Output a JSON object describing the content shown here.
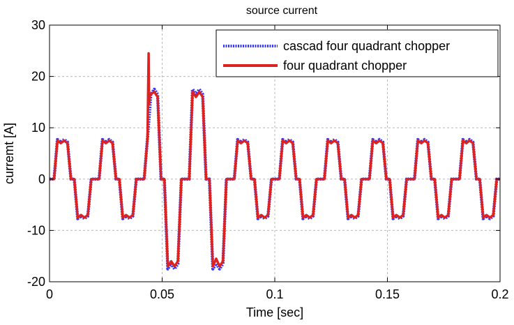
{
  "chart_data": {
    "type": "line",
    "title": "source current",
    "xlabel": "Time  [sec]",
    "ylabel": "curremt [A]",
    "xlim": [
      0,
      0.2
    ],
    "ylim": [
      -20,
      30
    ],
    "xticks": [
      0,
      0.05,
      0.1,
      0.15,
      0.2
    ],
    "xtick_labels": [
      "0",
      "0.05",
      "0.1",
      "0.15",
      "0.2"
    ],
    "yticks": [
      -20,
      -10,
      0,
      10,
      20,
      30
    ],
    "ytick_labels": [
      "-20",
      "-10",
      "0",
      "10",
      "20",
      "30"
    ],
    "grid": true,
    "legend_position": "top-right",
    "fundamental_period": 0.02,
    "series": [
      {
        "name": "cascad four quadrant chopper",
        "color": "#3333ff",
        "style": "dotted",
        "x": [
          0,
          0.002,
          0.0035,
          0.005,
          0.0065,
          0.008,
          0.0095,
          0.011,
          0.0125,
          0.014,
          0.0155,
          0.017,
          0.0185,
          0.02,
          0.022,
          0.0235,
          0.025,
          0.0265,
          0.028,
          0.0295,
          0.031,
          0.0325,
          0.034,
          0.0355,
          0.037,
          0.0385,
          0.04,
          0.042,
          0.0435,
          0.045,
          0.0465,
          0.048,
          0.0495,
          0.051,
          0.0525,
          0.054,
          0.0555,
          0.057,
          0.0585,
          0.06,
          0.062,
          0.0635,
          0.065,
          0.0665,
          0.068,
          0.0695,
          0.071,
          0.0725,
          0.074,
          0.0755,
          0.077,
          0.0785,
          0.08,
          0.082,
          0.0835,
          0.085,
          0.0865,
          0.088,
          0.0895,
          0.091,
          0.0925,
          0.094,
          0.0955,
          0.097,
          0.0985,
          0.1,
          0.102,
          0.1035,
          0.105,
          0.1065,
          0.108,
          0.1095,
          0.111,
          0.1125,
          0.114,
          0.1155,
          0.117,
          0.1185,
          0.12,
          0.122,
          0.1235,
          0.125,
          0.1265,
          0.128,
          0.1295,
          0.131,
          0.1325,
          0.134,
          0.1355,
          0.137,
          0.1385,
          0.14,
          0.142,
          0.1435,
          0.145,
          0.1465,
          0.148,
          0.1495,
          0.151,
          0.1525,
          0.154,
          0.1555,
          0.157,
          0.1585,
          0.16,
          0.162,
          0.1635,
          0.165,
          0.1665,
          0.168,
          0.1695,
          0.171,
          0.1725,
          0.174,
          0.1755,
          0.177,
          0.1785,
          0.18,
          0.182,
          0.1835,
          0.185,
          0.1865,
          0.188,
          0.1895,
          0.191,
          0.1925,
          0.194,
          0.1955,
          0.197,
          0.1985,
          0.2
        ],
        "y": [
          0,
          0,
          7.7,
          7.2,
          7.7,
          7.2,
          0,
          0,
          -7.7,
          -7.2,
          -7.7,
          -7.2,
          0,
          0,
          0,
          7.7,
          7.2,
          7.7,
          7.2,
          0,
          0,
          -7.7,
          -7.2,
          -7.7,
          -7.2,
          0,
          0,
          0,
          8,
          16.5,
          17.5,
          16.5,
          0,
          0,
          -17.5,
          -16.5,
          -17.5,
          -16.5,
          0,
          0,
          0,
          17.5,
          16.5,
          17.5,
          16.5,
          0,
          0,
          -17.5,
          -16.5,
          -17.5,
          -16.5,
          0,
          0,
          0,
          7.7,
          7.2,
          7.7,
          7.2,
          0,
          0,
          -7.7,
          -7.2,
          -7.7,
          -7.2,
          0,
          0,
          0,
          7.7,
          7.2,
          7.7,
          7.2,
          0,
          0,
          -7.7,
          -7.2,
          -7.7,
          -7.2,
          0,
          0,
          0,
          7.7,
          7.2,
          7.7,
          7.2,
          0,
          0,
          -7.7,
          -7.2,
          -7.7,
          -7.2,
          0,
          0,
          0,
          7.7,
          7.2,
          7.7,
          7.2,
          0,
          0,
          -7.7,
          -7.2,
          -7.7,
          -7.2,
          0,
          0,
          0,
          7.7,
          7.2,
          7.7,
          7.2,
          0,
          0,
          -7.7,
          -7.2,
          -7.7,
          -7.2,
          0,
          0,
          0,
          7.7,
          7.2,
          7.7,
          7.2,
          0,
          0,
          -7.7,
          -7.2,
          -7.7,
          -7.2,
          0,
          0
        ]
      },
      {
        "name": "four quadrant chopper",
        "color": "#dd2222",
        "style": "solid",
        "x": [
          0,
          0.002,
          0.0035,
          0.005,
          0.0065,
          0.008,
          0.0095,
          0.011,
          0.0125,
          0.014,
          0.0155,
          0.017,
          0.0185,
          0.02,
          0.022,
          0.0235,
          0.025,
          0.0265,
          0.028,
          0.0295,
          0.031,
          0.0325,
          0.034,
          0.0355,
          0.037,
          0.0385,
          0.04,
          0.042,
          0.0435,
          0.044,
          0.0442,
          0.0446,
          0.0465,
          0.048,
          0.0495,
          0.051,
          0.0525,
          0.054,
          0.0555,
          0.057,
          0.0585,
          0.06,
          0.062,
          0.0635,
          0.065,
          0.0665,
          0.068,
          0.0695,
          0.071,
          0.0725,
          0.074,
          0.0755,
          0.077,
          0.0785,
          0.08,
          0.082,
          0.0835,
          0.085,
          0.0865,
          0.088,
          0.0895,
          0.091,
          0.0925,
          0.094,
          0.0955,
          0.097,
          0.0985,
          0.1,
          0.102,
          0.1035,
          0.105,
          0.1065,
          0.108,
          0.1095,
          0.111,
          0.1125,
          0.114,
          0.1155,
          0.117,
          0.1185,
          0.12,
          0.122,
          0.1235,
          0.125,
          0.1265,
          0.128,
          0.1295,
          0.131,
          0.1325,
          0.134,
          0.1355,
          0.137,
          0.1385,
          0.14,
          0.142,
          0.1435,
          0.145,
          0.1465,
          0.148,
          0.1495,
          0.151,
          0.1525,
          0.154,
          0.1555,
          0.157,
          0.1585,
          0.16,
          0.162,
          0.1635,
          0.165,
          0.1665,
          0.168,
          0.1695,
          0.171,
          0.1725,
          0.174,
          0.1755,
          0.177,
          0.1785,
          0.18,
          0.182,
          0.1835,
          0.185,
          0.1865,
          0.188,
          0.1895,
          0.191,
          0.1925,
          0.194,
          0.1955,
          0.197,
          0.1985,
          0.2
        ],
        "y": [
          0,
          0,
          7.5,
          7,
          7.5,
          7,
          0,
          0,
          -7.5,
          -7,
          -7.5,
          -7,
          0,
          0,
          0,
          7.5,
          7,
          7.5,
          7,
          0,
          0,
          -7.5,
          -7,
          -7.5,
          -7,
          0,
          0,
          0,
          8,
          24.5,
          14.5,
          16.5,
          17,
          16,
          0,
          0,
          -17,
          -16,
          -17,
          -16,
          0,
          0,
          0,
          17,
          16,
          17,
          16,
          0,
          0,
          -17,
          -15.5,
          -17,
          -16,
          0,
          0,
          0,
          7.5,
          7,
          7.5,
          7,
          0,
          0,
          -7.5,
          -7,
          -7.5,
          -7,
          0,
          0,
          0,
          7.5,
          7,
          7.5,
          7,
          0,
          0,
          -7.5,
          -7,
          -7.5,
          -7,
          0,
          0,
          0,
          7.5,
          7,
          7.5,
          7,
          0,
          0,
          -7.5,
          -7,
          -7.5,
          -7,
          0,
          0,
          0,
          7.5,
          7,
          7.5,
          7,
          0,
          0,
          -7.5,
          -7,
          -7.5,
          -7,
          0,
          0,
          0,
          7.5,
          7,
          7.5,
          7,
          0,
          0,
          -7.5,
          -7,
          -7.5,
          -7,
          0,
          0,
          0,
          7.5,
          7,
          7.5,
          7,
          0,
          0,
          -7.5,
          -7,
          -7.5,
          -7,
          0,
          0
        ]
      }
    ]
  }
}
